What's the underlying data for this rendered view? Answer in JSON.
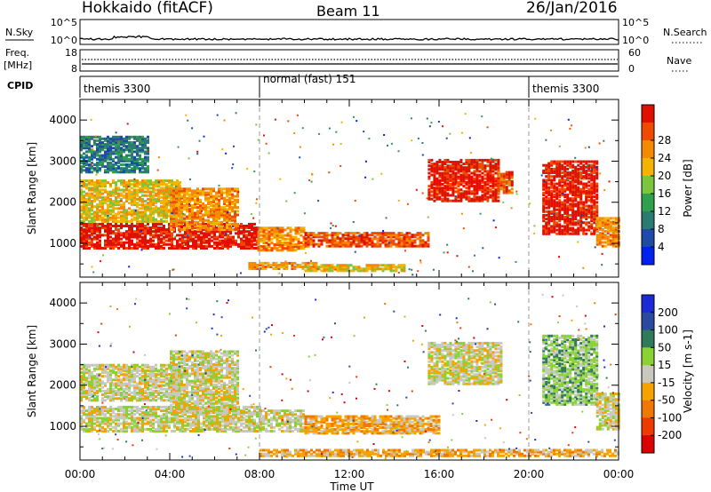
{
  "header": {
    "station": "Hokkaido (fitACF)",
    "beam": "Beam 11",
    "date": "26/Jan/2016"
  },
  "nsky_panel": {
    "left_label": "N.Sky",
    "left_ticks": [
      "10^5",
      "10^0"
    ],
    "right_label": "N.Search",
    "right_ticks": [
      "10^5",
      "10^0"
    ]
  },
  "freq_panel": {
    "left_label_1": "Freq.",
    "left_label_2": "[MHz]",
    "left_ticks": [
      "18",
      "8"
    ],
    "right_label": "Nave",
    "right_ticks": [
      "60",
      "0"
    ]
  },
  "cpid_panel": {
    "label": "CPID",
    "segments": [
      {
        "name": "themis 3300",
        "start_h": 0,
        "end_h": 8
      },
      {
        "name": "normal (fast) 151",
        "start_h": 8,
        "end_h": 20
      },
      {
        "name": "themis 3300",
        "start_h": 20,
        "end_h": 24
      }
    ]
  },
  "axes": {
    "x_ticks": [
      "00:00",
      "04:00",
      "08:00",
      "12:00",
      "16:00",
      "20:00",
      "00:00"
    ],
    "x_tick_hours": [
      0,
      4,
      8,
      12,
      16,
      20,
      24
    ],
    "xlabel": "Time UT",
    "y_label": "Slant Range [km]",
    "y_ticks": [
      "1000",
      "2000",
      "3000",
      "4000"
    ],
    "y_tick_values": [
      1000,
      2000,
      3000,
      4000
    ],
    "y_range": [
      180,
      4500
    ]
  },
  "colors": {
    "power": [
      "#0022ee",
      "#1f4aa8",
      "#2c7b72",
      "#2fa04d",
      "#7cc63d",
      "#f2b400",
      "#f58a00",
      "#f04a00",
      "#e01000"
    ],
    "velocity": [
      "#1a2bd6",
      "#2a4aa0",
      "#2e7a5a",
      "#8ad233",
      "#c8c8c0",
      "#f6a300",
      "#f07800",
      "#ee3a00",
      "#dd0000"
    ]
  },
  "chart_data": [
    {
      "type": "heatmap",
      "title": "",
      "xlabel": "",
      "ylabel": "Slant Range [km]",
      "colorbar_label": "Power [dB]",
      "colorbar_ticks": [
        "4",
        "8",
        "12",
        "16",
        "20",
        "24",
        "28"
      ],
      "x_range_h": [
        0,
        24
      ],
      "y_range_km": [
        180,
        4500
      ],
      "regions": [
        {
          "t0": 0.0,
          "t1": 7.9,
          "r0": 850,
          "r1": 1450,
          "level": 8
        },
        {
          "t0": 7.9,
          "t1": 10.0,
          "r0": 800,
          "r1": 1350,
          "level": 6
        },
        {
          "t0": 10.0,
          "t1": 15.5,
          "r0": 900,
          "r1": 1250,
          "level": 7
        },
        {
          "t0": 7.5,
          "t1": 10.5,
          "r0": 350,
          "r1": 500,
          "level": 6
        },
        {
          "t0": 10.0,
          "t1": 14.5,
          "r0": 300,
          "r1": 480,
          "level": 5
        },
        {
          "t0": 15.5,
          "t1": 18.6,
          "r0": 2000,
          "r1": 3000,
          "level": 8
        },
        {
          "t0": 18.6,
          "t1": 19.2,
          "r0": 2200,
          "r1": 2700,
          "level": 7
        },
        {
          "t0": 20.6,
          "t1": 23.0,
          "r0": 1200,
          "r1": 3000,
          "level": 8
        },
        {
          "t0": 23.0,
          "t1": 24.0,
          "r0": 900,
          "r1": 1600,
          "level": 6
        },
        {
          "t0": 0.0,
          "t1": 4.5,
          "r0": 1500,
          "r1": 2500,
          "level": 5
        },
        {
          "t0": 4.0,
          "t1": 7.0,
          "r0": 1300,
          "r1": 2300,
          "level": 6
        },
        {
          "t0": 0.0,
          "t1": 3.0,
          "r0": 2700,
          "r1": 3600,
          "level": 2
        }
      ]
    },
    {
      "type": "heatmap",
      "title": "",
      "xlabel": "Time UT",
      "ylabel": "Slant Range [km]",
      "colorbar_label": "Velocity [m s-1]",
      "colorbar_ticks": [
        "200",
        "100",
        "50",
        "15",
        "-15",
        "-50",
        "-100",
        "-200"
      ],
      "x_range_h": [
        0,
        24
      ],
      "y_range_km": [
        180,
        4500
      ],
      "regions": [
        {
          "t0": 0.0,
          "t1": 8.0,
          "r0": 850,
          "r1": 1450,
          "level": 4
        },
        {
          "t0": 8.0,
          "t1": 10.0,
          "r0": 850,
          "r1": 1350,
          "level": 4
        },
        {
          "t0": 10.0,
          "t1": 16.0,
          "r0": 800,
          "r1": 1250,
          "level": 5
        },
        {
          "t0": 15.5,
          "t1": 18.8,
          "r0": 2000,
          "r1": 3000,
          "level": 4
        },
        {
          "t0": 20.6,
          "t1": 23.0,
          "r0": 1500,
          "r1": 3200,
          "level": 3
        },
        {
          "t0": 23.0,
          "t1": 24.0,
          "r0": 900,
          "r1": 1800,
          "level": 4
        },
        {
          "t0": 0.0,
          "t1": 4.5,
          "r0": 1600,
          "r1": 2500,
          "level": 4
        },
        {
          "t0": 4.0,
          "t1": 7.0,
          "r0": 1300,
          "r1": 2800,
          "level": 4
        },
        {
          "t0": 8.0,
          "t1": 24.0,
          "r0": 250,
          "r1": 400,
          "level": 5
        }
      ]
    }
  ]
}
